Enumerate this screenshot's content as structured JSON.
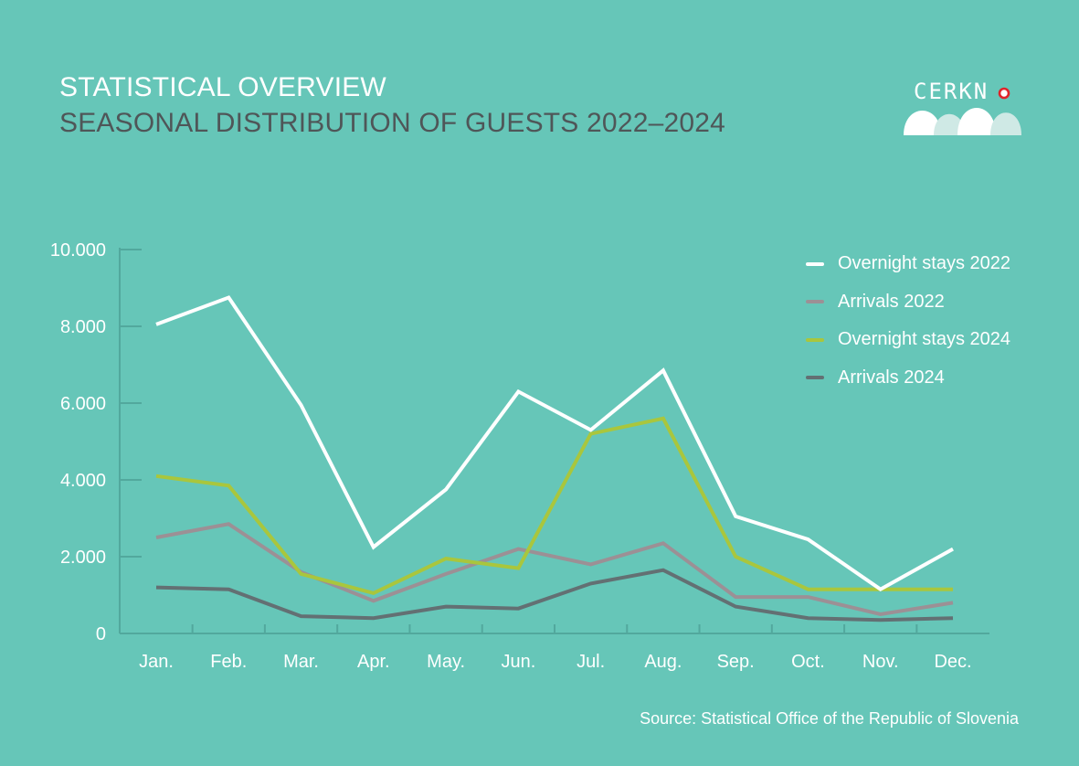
{
  "header": {
    "title": "STATISTICAL OVERVIEW",
    "subtitle": "SEASONAL DISTRIBUTION OF GUESTS 2022–2024"
  },
  "logo": {
    "text": "CERKN"
  },
  "source": "Source: Statistical Office of the Republic of Slovenia",
  "colors": {
    "background": "#66c6b8",
    "axis": "#52a89d"
  },
  "chart_data": {
    "type": "line",
    "categories": [
      "Jan.",
      "Feb.",
      "Mar.",
      "Apr.",
      "May.",
      "Jun.",
      "Jul.",
      "Aug.",
      "Sep.",
      "Oct.",
      "Nov.",
      "Dec."
    ],
    "ylim": [
      0,
      10000
    ],
    "yticks": [
      0,
      2000,
      4000,
      6000,
      8000,
      10000
    ],
    "ytick_labels": [
      "0",
      "2.000",
      "4.000",
      "6.000",
      "8.000",
      "10.000"
    ],
    "legend_position": "top-right",
    "grid": false,
    "series": [
      {
        "name": "Overnight stays 2022",
        "color": "#ffffff",
        "values": [
          8050,
          8750,
          5950,
          2250,
          3750,
          6300,
          5300,
          6850,
          3050,
          2450,
          1150,
          2200
        ]
      },
      {
        "name": "Arrivals 2022",
        "color": "#9c9095",
        "values": [
          2500,
          2850,
          1600,
          850,
          1550,
          2200,
          1800,
          2350,
          950,
          950,
          500,
          800
        ]
      },
      {
        "name": "Overnight stays 2024",
        "color": "#a9c63d",
        "values": [
          4100,
          3850,
          1550,
          1050,
          1950,
          1700,
          5200,
          5600,
          2000,
          1150,
          1150,
          1150
        ]
      },
      {
        "name": "Arrivals 2024",
        "color": "#637073",
        "values": [
          1200,
          1150,
          450,
          400,
          700,
          650,
          1300,
          1650,
          700,
          400,
          350,
          400
        ]
      }
    ]
  }
}
